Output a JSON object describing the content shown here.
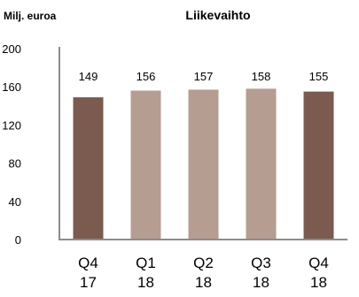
{
  "chart_data": {
    "type": "bar",
    "title": "Liikevaihto",
    "ylabel": "Milj. euroa",
    "xlabel": "",
    "categories": [
      [
        "Q4",
        "17"
      ],
      [
        "Q1",
        "18"
      ],
      [
        "Q2",
        "18"
      ],
      [
        "Q3",
        "18"
      ],
      [
        "Q4",
        "18"
      ]
    ],
    "values": [
      149,
      156,
      157,
      158,
      155
    ],
    "data_labels": [
      "149",
      "156",
      "157",
      "158",
      "155"
    ],
    "ylim": [
      0,
      200
    ],
    "yticks": [
      "0",
      "40",
      "80",
      "120",
      "160",
      "200"
    ],
    "ytick_values": [
      0,
      40,
      80,
      120,
      160,
      200
    ],
    "bar_colors": [
      "#7b5b4f",
      "#b59d92",
      "#b59d92",
      "#b59d92",
      "#7b5b4f"
    ],
    "axis_color": "#8c8c8c",
    "grid": false,
    "legend": "none"
  }
}
